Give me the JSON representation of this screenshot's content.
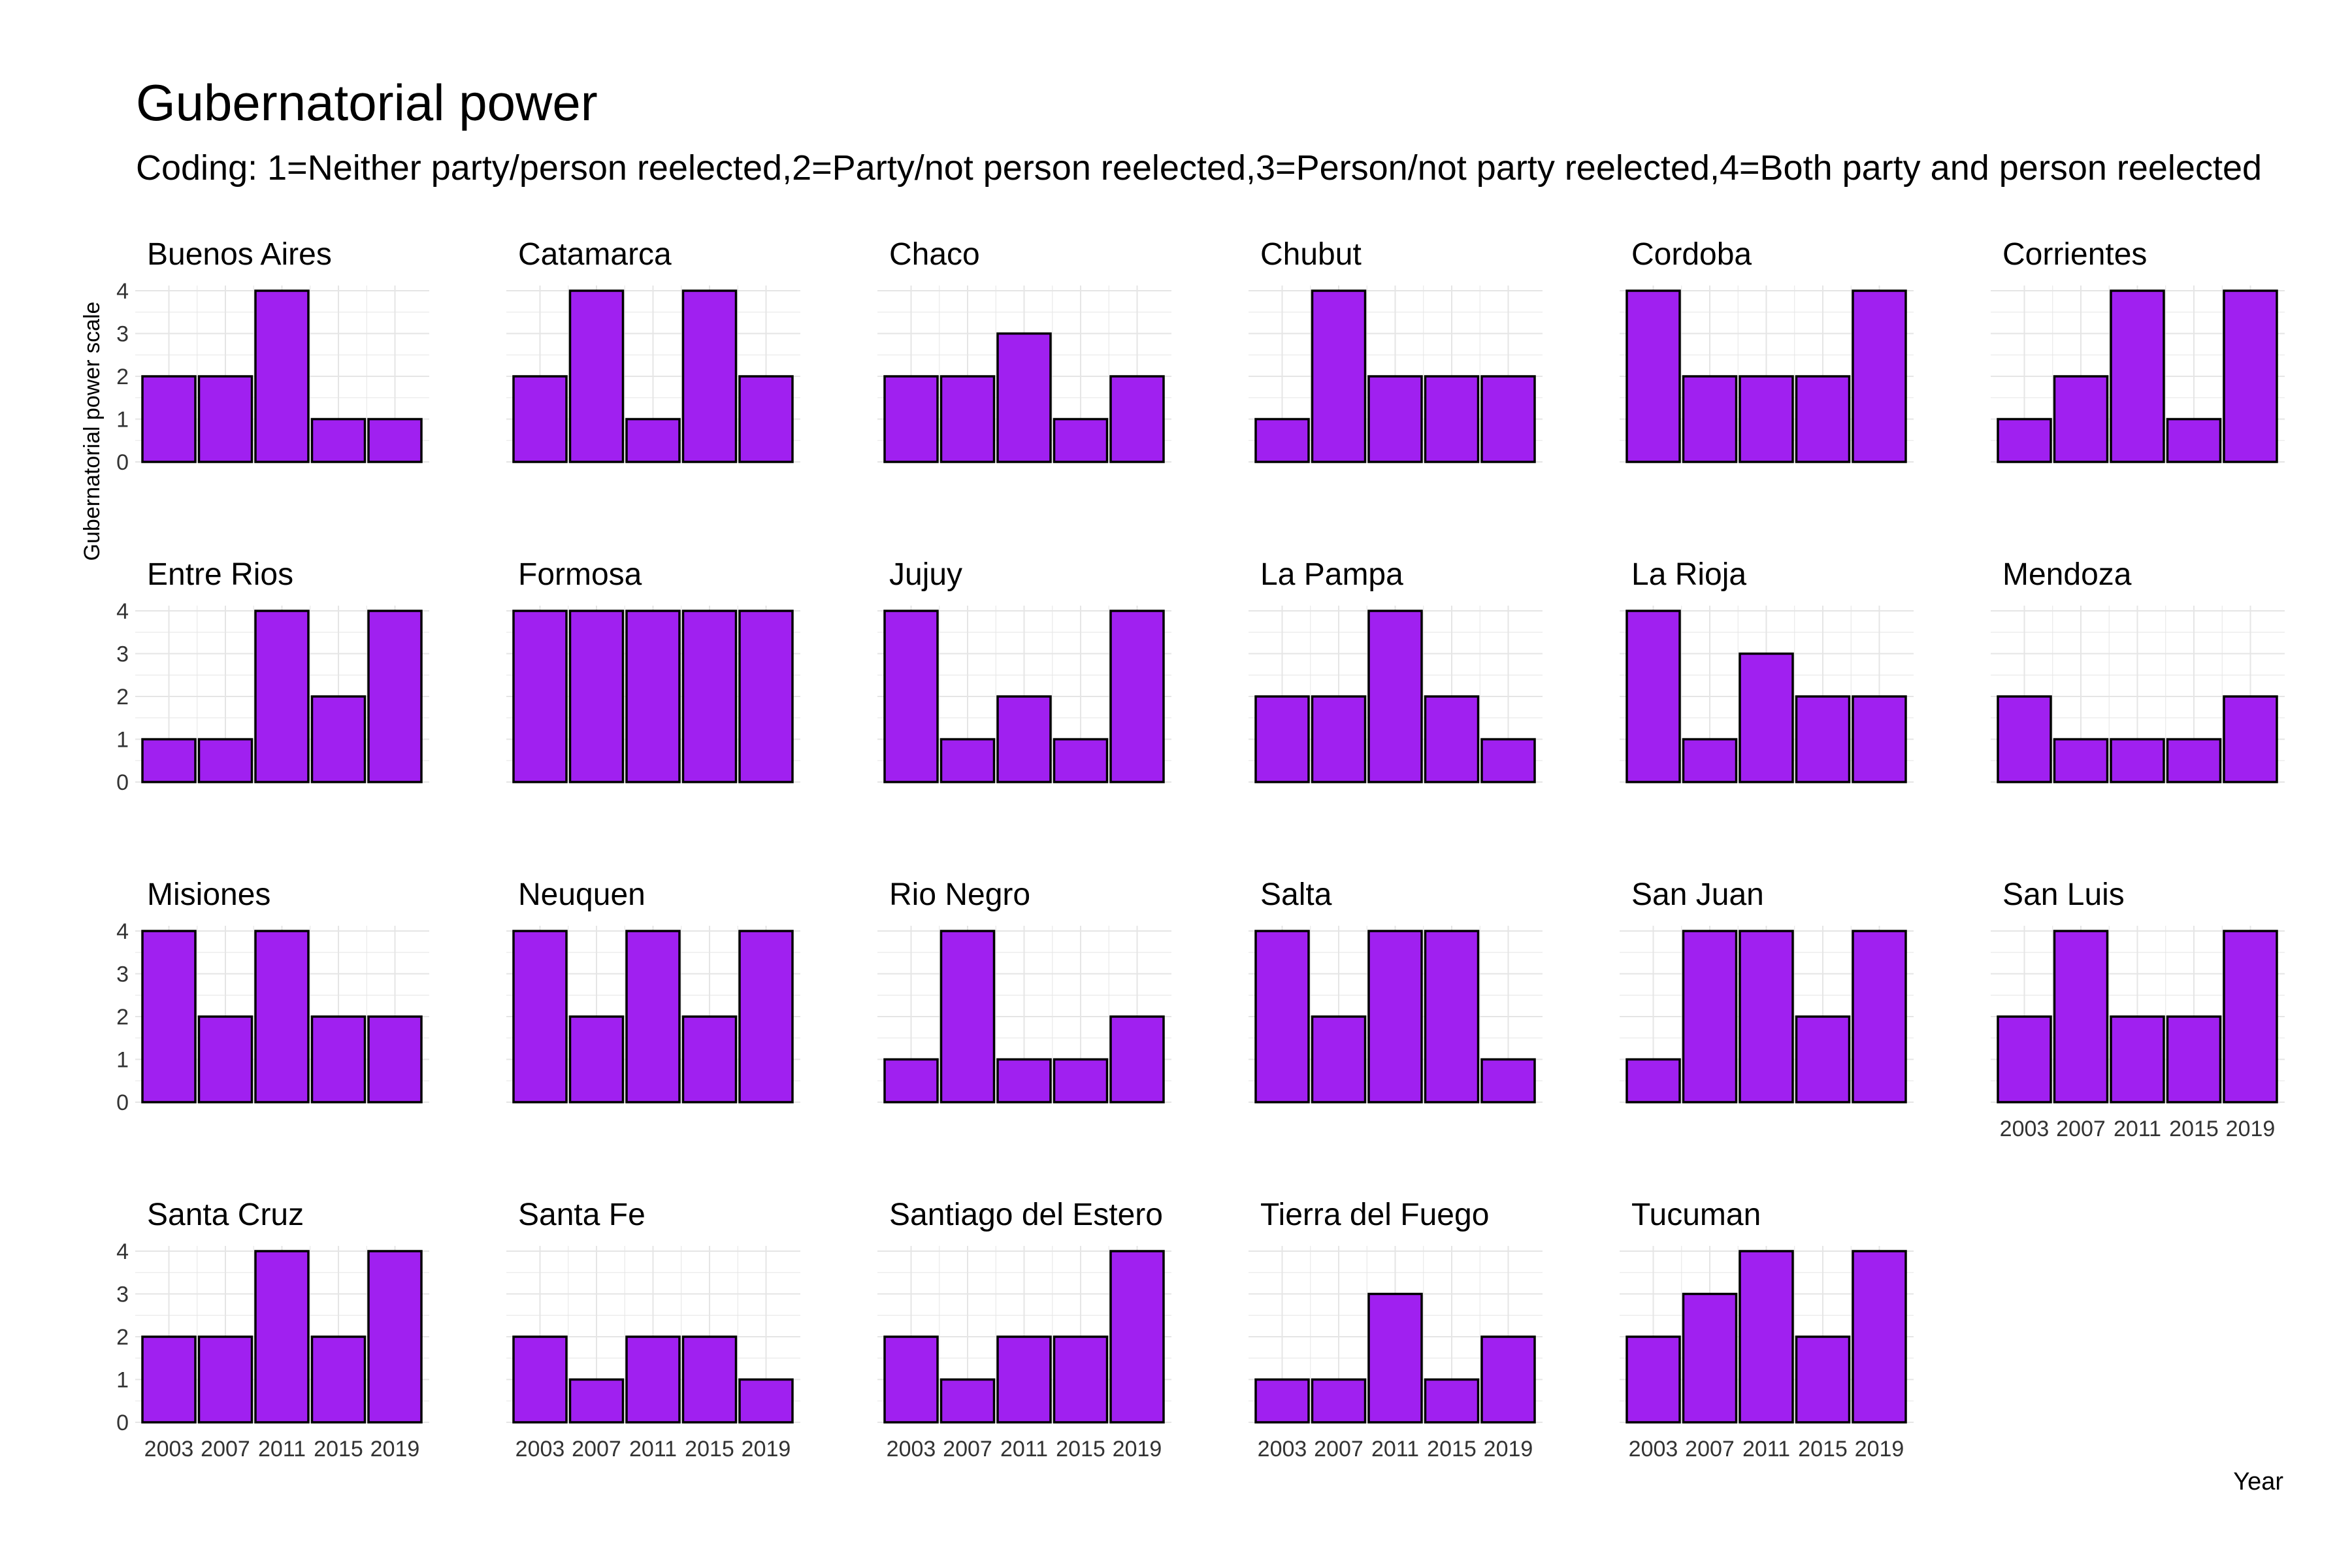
{
  "chart_data": {
    "type": "bar",
    "title": "Gubernatorial power",
    "subtitle": "Coding: 1=Neither party/person reelected,2=Party/not person reelected,3=Person/not party reelected,4=Both party and person reelected",
    "xlabel": "Year",
    "ylabel": "Gubernatorial power scale",
    "categories": [
      "2003",
      "2007",
      "2011",
      "2015",
      "2019"
    ],
    "y_ticks": [
      0,
      1,
      2,
      3,
      4
    ],
    "ylim": [
      0,
      4
    ],
    "grid": true,
    "colors": {
      "bar_fill": "#A020F0",
      "bar_stroke": "#000000",
      "grid": "#E5E5E5",
      "text": "#333333"
    },
    "panels": [
      {
        "name": "Buenos Aires",
        "values": [
          2,
          2,
          4,
          1,
          1
        ]
      },
      {
        "name": "Catamarca",
        "values": [
          2,
          4,
          1,
          4,
          2
        ]
      },
      {
        "name": "Chaco",
        "values": [
          2,
          2,
          3,
          1,
          2
        ]
      },
      {
        "name": "Chubut",
        "values": [
          1,
          4,
          2,
          2,
          2
        ]
      },
      {
        "name": "Cordoba",
        "values": [
          4,
          2,
          2,
          2,
          4
        ]
      },
      {
        "name": "Corrientes",
        "values": [
          1,
          2,
          4,
          1,
          4
        ]
      },
      {
        "name": "Entre Rios",
        "values": [
          1,
          1,
          4,
          2,
          4
        ]
      },
      {
        "name": "Formosa",
        "values": [
          4,
          4,
          4,
          4,
          4
        ]
      },
      {
        "name": "Jujuy",
        "values": [
          4,
          1,
          2,
          1,
          4
        ]
      },
      {
        "name": "La Pampa",
        "values": [
          2,
          2,
          4,
          2,
          1
        ]
      },
      {
        "name": "La Rioja",
        "values": [
          4,
          1,
          3,
          2,
          2
        ]
      },
      {
        "name": "Mendoza",
        "values": [
          2,
          1,
          1,
          1,
          2
        ]
      },
      {
        "name": "Misiones",
        "values": [
          4,
          2,
          4,
          2,
          2
        ]
      },
      {
        "name": "Neuquen",
        "values": [
          4,
          2,
          4,
          2,
          4
        ]
      },
      {
        "name": "Rio Negro",
        "values": [
          1,
          4,
          1,
          1,
          2
        ]
      },
      {
        "name": "Salta",
        "values": [
          4,
          2,
          4,
          4,
          1
        ]
      },
      {
        "name": "San Juan",
        "values": [
          1,
          4,
          4,
          2,
          4
        ]
      },
      {
        "name": "San Luis",
        "values": [
          2,
          4,
          2,
          2,
          4
        ]
      },
      {
        "name": "Santa Cruz",
        "values": [
          2,
          2,
          4,
          2,
          4
        ]
      },
      {
        "name": "Santa Fe",
        "values": [
          2,
          1,
          2,
          2,
          1
        ]
      },
      {
        "name": "Santiago del Estero",
        "values": [
          2,
          1,
          2,
          2,
          4
        ]
      },
      {
        "name": "Tierra del Fuego",
        "values": [
          1,
          1,
          3,
          1,
          2
        ]
      },
      {
        "name": "Tucuman",
        "values": [
          2,
          3,
          4,
          2,
          4
        ]
      }
    ]
  }
}
